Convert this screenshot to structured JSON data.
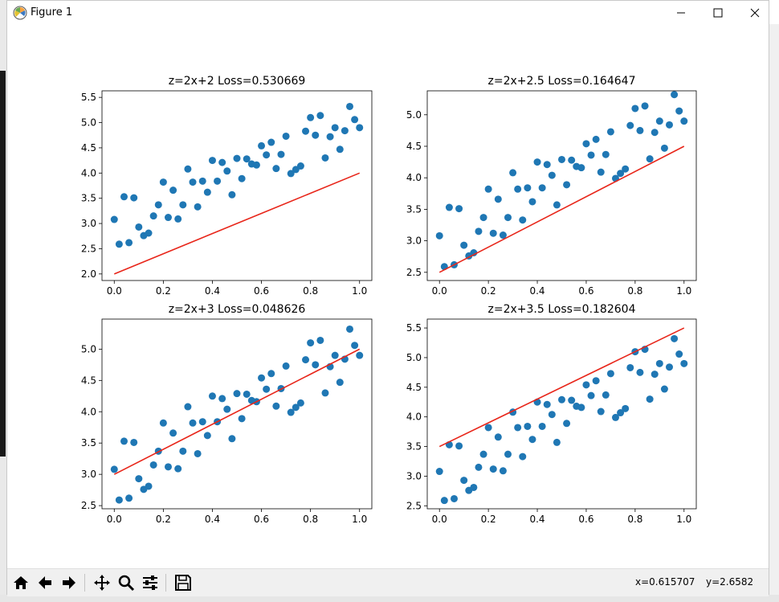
{
  "window": {
    "title": "Figure 1",
    "icons": [
      "matplotlib-icon",
      "minimize-icon",
      "maximize-icon",
      "close-icon"
    ]
  },
  "toolbar": {
    "buttons": [
      "home-icon",
      "back-arrow-icon",
      "forward-arrow-icon",
      "pan-icon",
      "zoom-icon",
      "subplots-config-icon",
      "save-icon"
    ],
    "x_readout": "x=0.615707",
    "y_readout": "y=2.6582"
  },
  "colors": {
    "scatter": "#1f77b4",
    "line": "#e8261a",
    "axes_edge": "#000000",
    "toolbar_bg": "#f0f0f0"
  },
  "chart_data": [
    {
      "type": "scatter",
      "title": "z=2x+2 Loss=0.530669",
      "xlim": [
        -0.05,
        1.05
      ],
      "ylim": [
        1.87,
        5.63
      ],
      "xticks": [
        "0.0",
        "0.2",
        "0.4",
        "0.6",
        "0.8",
        "1.0"
      ],
      "xtick_values": [
        0,
        0.2,
        0.4,
        0.6,
        0.8,
        1.0
      ],
      "yticks": [
        "2.0",
        "2.5",
        "3.0",
        "3.5",
        "4.0",
        "4.5",
        "5.0",
        "5.5"
      ],
      "ytick_values": [
        2.0,
        2.5,
        3.0,
        3.5,
        4.0,
        4.5,
        5.0,
        5.5
      ],
      "line": {
        "x": [
          0,
          1
        ],
        "y": [
          2.0,
          4.0
        ]
      }
    },
    {
      "type": "scatter",
      "title": "z=2x+2.5 Loss=0.164647",
      "xlim": [
        -0.05,
        1.05
      ],
      "ylim": [
        2.37,
        5.38
      ],
      "xticks": [
        "0.0",
        "0.2",
        "0.4",
        "0.6",
        "0.8",
        "1.0"
      ],
      "xtick_values": [
        0,
        0.2,
        0.4,
        0.6,
        0.8,
        1.0
      ],
      "yticks": [
        "2.5",
        "3.0",
        "3.5",
        "4.0",
        "4.5",
        "5.0"
      ],
      "ytick_values": [
        2.5,
        3.0,
        3.5,
        4.0,
        4.5,
        5.0
      ],
      "line": {
        "x": [
          0,
          1
        ],
        "y": [
          2.5,
          4.5
        ]
      }
    },
    {
      "type": "scatter",
      "title": "z=2x+3 Loss=0.048626",
      "xlim": [
        -0.05,
        1.05
      ],
      "ylim": [
        2.45,
        5.48
      ],
      "xticks": [
        "0.0",
        "0.2",
        "0.4",
        "0.6",
        "0.8",
        "1.0"
      ],
      "xtick_values": [
        0,
        0.2,
        0.4,
        0.6,
        0.8,
        1.0
      ],
      "yticks": [
        "2.5",
        "3.0",
        "3.5",
        "4.0",
        "4.5",
        "5.0"
      ],
      "ytick_values": [
        2.5,
        3.0,
        3.5,
        4.0,
        4.5,
        5.0
      ],
      "line": {
        "x": [
          0,
          1
        ],
        "y": [
          3.0,
          5.0
        ]
      }
    },
    {
      "type": "scatter",
      "title": "z=2x+3.5 Loss=0.182604",
      "xlim": [
        -0.05,
        1.05
      ],
      "ylim": [
        2.45,
        5.65
      ],
      "xticks": [
        "0.0",
        "0.2",
        "0.4",
        "0.6",
        "0.8",
        "1.0"
      ],
      "xtick_values": [
        0,
        0.2,
        0.4,
        0.6,
        0.8,
        1.0
      ],
      "yticks": [
        "2.5",
        "3.0",
        "3.5",
        "4.0",
        "4.5",
        "5.0",
        "5.5"
      ],
      "ytick_values": [
        2.5,
        3.0,
        3.5,
        4.0,
        4.5,
        5.0,
        5.5
      ],
      "line": {
        "x": [
          0,
          1
        ],
        "y": [
          3.5,
          5.5
        ]
      }
    }
  ],
  "points": {
    "x": [
      0.0,
      0.02,
      0.04,
      0.06,
      0.08,
      0.1,
      0.12,
      0.14,
      0.16,
      0.18,
      0.2,
      0.22,
      0.24,
      0.26,
      0.28,
      0.3,
      0.32,
      0.34,
      0.36,
      0.38,
      0.4,
      0.42,
      0.44,
      0.46,
      0.48,
      0.5,
      0.52,
      0.54,
      0.56,
      0.58,
      0.6,
      0.62,
      0.64,
      0.66,
      0.68,
      0.7,
      0.72,
      0.74,
      0.76,
      0.78,
      0.8,
      0.82,
      0.84,
      0.86,
      0.88,
      0.9,
      0.92,
      0.94,
      0.96,
      0.98,
      1.0
    ],
    "y": [
      3.08,
      2.59,
      3.53,
      2.62,
      3.51,
      2.93,
      2.76,
      2.81,
      3.15,
      3.37,
      3.82,
      3.12,
      3.66,
      3.09,
      3.37,
      4.08,
      3.82,
      3.33,
      3.84,
      3.62,
      4.25,
      3.84,
      4.21,
      4.04,
      3.57,
      4.29,
      3.89,
      4.28,
      4.18,
      4.16,
      4.54,
      4.36,
      4.61,
      4.09,
      4.37,
      4.73,
      3.99,
      4.07,
      4.14,
      4.83,
      5.1,
      4.75,
      5.14,
      4.3,
      4.72,
      4.9,
      4.47,
      4.84,
      5.32,
      5.06,
      4.9
    ]
  }
}
